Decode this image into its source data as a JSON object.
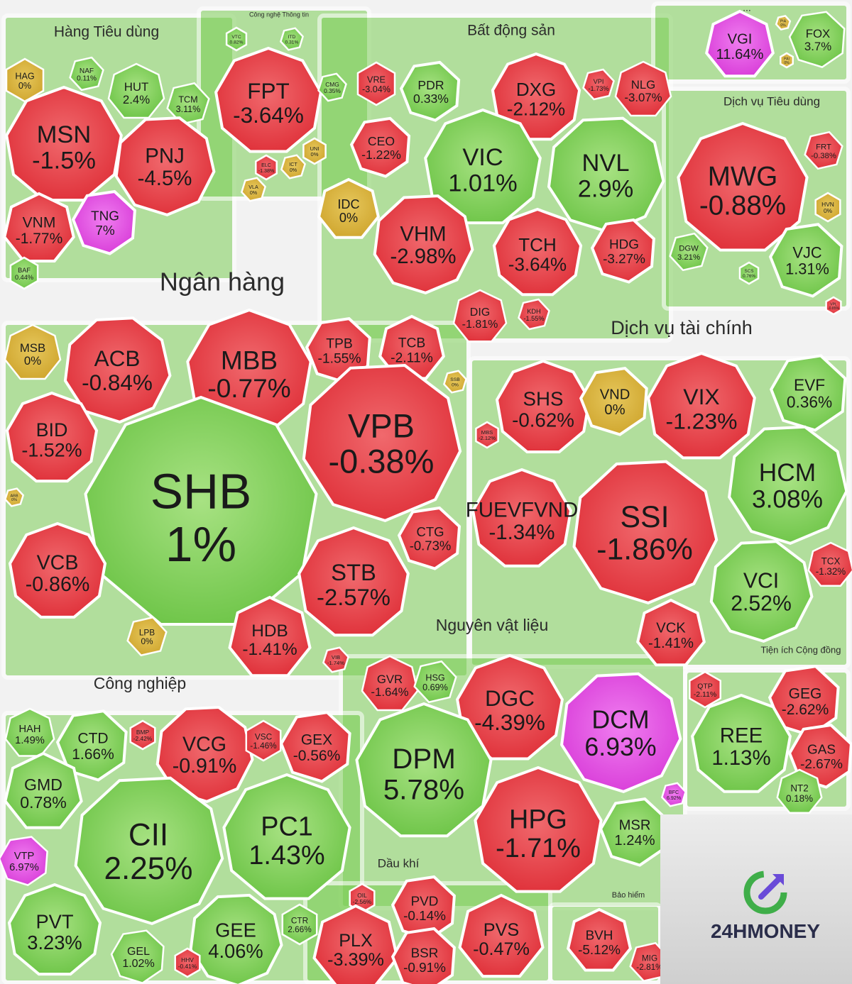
{
  "brand": {
    "logo_text": "24HMONEY"
  },
  "colors": {
    "up": "#7ccf56",
    "down": "#e8383f",
    "flat": "#d8b23a",
    "ceiling": "#e04ae0",
    "floor": "#3bb6e0",
    "panel": "#f7f7f7"
  },
  "chart_data": {
    "type": "heatmap",
    "title": "",
    "sectors": [
      {
        "name": "Hàng Tiêu dùng",
        "stocks": [
          {
            "ticker": "HAG",
            "change": "0%"
          },
          {
            "ticker": "NAF",
            "change": "0.11%"
          },
          {
            "ticker": "HUT",
            "change": "2.4%"
          },
          {
            "ticker": "TCM",
            "change": "3.11%"
          },
          {
            "ticker": "MSN",
            "change": "-1.5%"
          },
          {
            "ticker": "PNJ",
            "change": "-4.5%"
          },
          {
            "ticker": "VNM",
            "change": "-1.77%"
          },
          {
            "ticker": "TNG",
            "change": "7%"
          },
          {
            "ticker": "BAF",
            "change": "0.44%"
          }
        ]
      },
      {
        "name": "Công nghệ Thông tin",
        "stocks": [
          {
            "ticker": "VTC",
            "change": "0.82%"
          },
          {
            "ticker": "ITD",
            "change": "0.31%"
          },
          {
            "ticker": "FPT",
            "change": "-3.64%"
          },
          {
            "ticker": "CMG",
            "change": "0.35%"
          },
          {
            "ticker": "ELC",
            "change": "-1.38%"
          },
          {
            "ticker": "ICT",
            "change": "0%"
          },
          {
            "ticker": "UNI",
            "change": "0%"
          },
          {
            "ticker": "VLA",
            "change": "0%"
          }
        ]
      },
      {
        "name": "Bất động sản",
        "stocks": [
          {
            "ticker": "VRE",
            "change": "-3.04%"
          },
          {
            "ticker": "PDR",
            "change": "0.33%"
          },
          {
            "ticker": "DXG",
            "change": "-2.12%"
          },
          {
            "ticker": "VPI",
            "change": "-1.73%"
          },
          {
            "ticker": "NLG",
            "change": "-3.07%"
          },
          {
            "ticker": "CEO",
            "change": "-1.22%"
          },
          {
            "ticker": "VIC",
            "change": "1.01%"
          },
          {
            "ticker": "NVL",
            "change": "2.9%"
          },
          {
            "ticker": "IDC",
            "change": "0%"
          },
          {
            "ticker": "VHM",
            "change": "-2.98%"
          },
          {
            "ticker": "TCH",
            "change": "-3.64%"
          },
          {
            "ticker": "HDG",
            "change": "-3.27%"
          },
          {
            "ticker": "DIG",
            "change": "-1.81%"
          },
          {
            "ticker": "KDH",
            "change": "-1.55%"
          }
        ]
      },
      {
        "name": "...",
        "stocks": [
          {
            "ticker": "VGI",
            "change": "11.64%"
          },
          {
            "ticker": "PIA",
            "change": "0%"
          },
          {
            "ticker": "PAI",
            "change": "0%"
          },
          {
            "ticker": "FOX",
            "change": "3.7%"
          }
        ]
      },
      {
        "name": "Dịch vụ Tiêu dùng",
        "stocks": [
          {
            "ticker": "MWG",
            "change": "-0.88%"
          },
          {
            "ticker": "FRT",
            "change": "-0.38%"
          },
          {
            "ticker": "HVN",
            "change": "0%"
          },
          {
            "ticker": "DGW",
            "change": "3.21%"
          },
          {
            "ticker": "SCS",
            "change": "0.76%"
          },
          {
            "ticker": "VJC",
            "change": "1.31%"
          },
          {
            "ticker": "VPL",
            "change": "-0.85%"
          }
        ]
      },
      {
        "name": "Ngân hàng",
        "stocks": [
          {
            "ticker": "MSB",
            "change": "0%"
          },
          {
            "ticker": "ACB",
            "change": "-0.84%"
          },
          {
            "ticker": "MBB",
            "change": "-0.77%"
          },
          {
            "ticker": "TPB",
            "change": "-1.55%"
          },
          {
            "ticker": "TCB",
            "change": "-2.11%"
          },
          {
            "ticker": "SSB",
            "change": "0%"
          },
          {
            "ticker": "BID",
            "change": "-1.52%"
          },
          {
            "ticker": "VPB",
            "change": "-0.38%"
          },
          {
            "ticker": "SHB",
            "change": "1%"
          },
          {
            "ticker": "ABB",
            "change": "0%"
          },
          {
            "ticker": "VCB",
            "change": "-0.86%"
          },
          {
            "ticker": "CTG",
            "change": "-0.73%"
          },
          {
            "ticker": "STB",
            "change": "-2.57%"
          },
          {
            "ticker": "LPB",
            "change": "0%"
          },
          {
            "ticker": "HDB",
            "change": "-1.41%"
          },
          {
            "ticker": "VIB",
            "change": "-1.74%"
          }
        ]
      },
      {
        "name": "Dịch vụ tài chính",
        "stocks": [
          {
            "ticker": "SHS",
            "change": "-0.62%"
          },
          {
            "ticker": "VND",
            "change": "0%"
          },
          {
            "ticker": "VIX",
            "change": "-1.23%"
          },
          {
            "ticker": "EVF",
            "change": "0.36%"
          },
          {
            "ticker": "MBS",
            "change": "-2.12%"
          },
          {
            "ticker": "HCM",
            "change": "3.08%"
          },
          {
            "ticker": "FUEVFVND",
            "change": "-1.34%"
          },
          {
            "ticker": "SSI",
            "change": "-1.86%"
          },
          {
            "ticker": "TCX",
            "change": "-1.32%"
          },
          {
            "ticker": "VCI",
            "change": "2.52%"
          },
          {
            "ticker": "VCK",
            "change": "-1.41%"
          }
        ]
      },
      {
        "name": "Tiện ích Cộng đồng",
        "stocks": [
          {
            "ticker": "QTP",
            "change": "-2.11%"
          },
          {
            "ticker": "GEG",
            "change": "-2.62%"
          },
          {
            "ticker": "REE",
            "change": "1.13%"
          },
          {
            "ticker": "GAS",
            "change": "-2.67%"
          },
          {
            "ticker": "NT2",
            "change": "0.18%"
          }
        ]
      },
      {
        "name": "Nguyên vật liệu",
        "stocks": [
          {
            "ticker": "GVR",
            "change": "-1.64%"
          },
          {
            "ticker": "HSG",
            "change": "0.69%"
          },
          {
            "ticker": "DGC",
            "change": "-4.39%"
          },
          {
            "ticker": "DCM",
            "change": "6.93%"
          },
          {
            "ticker": "DPM",
            "change": "5.78%"
          },
          {
            "ticker": "BFC",
            "change": "6.92%"
          },
          {
            "ticker": "HPG",
            "change": "-1.71%"
          },
          {
            "ticker": "MSR",
            "change": "1.24%"
          }
        ]
      },
      {
        "name": "Công nghiệp",
        "stocks": [
          {
            "ticker": "HAH",
            "change": "1.49%"
          },
          {
            "ticker": "CTD",
            "change": "1.66%"
          },
          {
            "ticker": "BMP",
            "change": "-2.42%"
          },
          {
            "ticker": "VCG",
            "change": "-0.91%"
          },
          {
            "ticker": "VSC",
            "change": "-1.46%"
          },
          {
            "ticker": "GEX",
            "change": "-0.56%"
          },
          {
            "ticker": "GMD",
            "change": "0.78%"
          },
          {
            "ticker": "CII",
            "change": "2.25%"
          },
          {
            "ticker": "PC1",
            "change": "1.43%"
          },
          {
            "ticker": "VTP",
            "change": "6.97%"
          },
          {
            "ticker": "PVT",
            "change": "3.23%"
          },
          {
            "ticker": "GEE",
            "change": "4.06%"
          },
          {
            "ticker": "CTR",
            "change": "2.66%"
          },
          {
            "ticker": "GEL",
            "change": "1.02%"
          },
          {
            "ticker": "HHV",
            "change": "-0.41%"
          }
        ]
      },
      {
        "name": "Dầu khí",
        "stocks": [
          {
            "ticker": "OIL",
            "change": "-2.56%"
          },
          {
            "ticker": "PVD",
            "change": "-0.14%"
          },
          {
            "ticker": "PLX",
            "change": "-3.39%"
          },
          {
            "ticker": "BSR",
            "change": "-0.91%"
          },
          {
            "ticker": "PVS",
            "change": "-0.47%"
          }
        ]
      },
      {
        "name": "Bảo hiểm",
        "stocks": [
          {
            "ticker": "BVH",
            "change": "-5.12%"
          },
          {
            "ticker": "MIG",
            "change": "-2.81%"
          }
        ]
      }
    ]
  }
}
